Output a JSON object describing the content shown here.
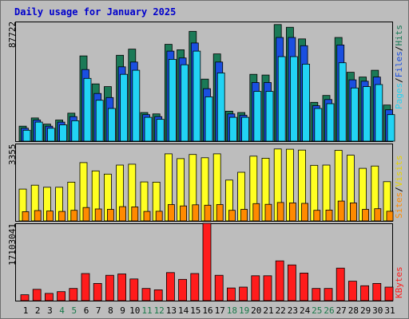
{
  "title": "Daily usage for January 2025",
  "colors": {
    "background": "#bdbdbd",
    "hits": "#1b7a57",
    "files": "#1a4fe0",
    "pages": "#22d3f4",
    "visits": "#ffff22",
    "sites": "#ff8a00",
    "kbytes": "#ff1c1c",
    "weekend_label": "#1a7a4a",
    "weekday_label": "#000000"
  },
  "chart_data": [
    {
      "type": "bar",
      "panel": "hits-files-pages",
      "ymax_label": "87722",
      "ylim": [
        0,
        87722
      ],
      "series_labels": [
        "Pages",
        "/",
        "Files",
        "/",
        "Hits"
      ],
      "categories": [
        "1",
        "2",
        "3",
        "4",
        "5",
        "6",
        "7",
        "8",
        "9",
        "10",
        "11",
        "12",
        "13",
        "14",
        "15",
        "16",
        "17",
        "18",
        "19",
        "20",
        "21",
        "22",
        "23",
        "24",
        "25",
        "26",
        "27",
        "28",
        "29",
        "30",
        "31"
      ],
      "series": [
        {
          "name": "Hits",
          "values": [
            11000,
            17000,
            12500,
            15500,
            20500,
            62500,
            42000,
            40000,
            63000,
            67500,
            21000,
            20000,
            71000,
            67000,
            80500,
            45500,
            64000,
            22000,
            21000,
            49000,
            48500,
            85500,
            83500,
            75000,
            28500,
            33500,
            76000,
            50500,
            47000,
            52000,
            26500
          ]
        },
        {
          "name": "Files",
          "values": [
            9500,
            15500,
            11000,
            14000,
            18000,
            52500,
            35000,
            32000,
            54500,
            58000,
            19500,
            18000,
            66000,
            61000,
            72000,
            38500,
            58000,
            20000,
            19000,
            43000,
            43000,
            76000,
            76000,
            70000,
            26000,
            30500,
            70500,
            45000,
            44000,
            47000,
            23000
          ]
        },
        {
          "name": "Pages",
          "values": [
            8000,
            14000,
            9500,
            12000,
            15000,
            46000,
            30000,
            24000,
            49000,
            52000,
            17500,
            16000,
            60000,
            56000,
            66000,
            32500,
            50000,
            17500,
            17500,
            36500,
            36500,
            62000,
            62000,
            56500,
            24000,
            27500,
            57500,
            39000,
            40000,
            41500,
            19500
          ]
        }
      ]
    },
    {
      "type": "bar",
      "panel": "visits-sites",
      "ymax_label": "3355",
      "ylim": [
        0,
        3355
      ],
      "series_labels": [
        "Sites",
        "/",
        "Visits"
      ],
      "categories": [
        "1",
        "2",
        "3",
        "4",
        "5",
        "6",
        "7",
        "8",
        "9",
        "10",
        "11",
        "12",
        "13",
        "14",
        "15",
        "16",
        "17",
        "18",
        "19",
        "20",
        "21",
        "22",
        "23",
        "24",
        "25",
        "26",
        "27",
        "28",
        "29",
        "30",
        "31"
      ],
      "series": [
        {
          "name": "Visits",
          "values": [
            1380,
            1550,
            1460,
            1460,
            1680,
            2530,
            2170,
            2030,
            2420,
            2460,
            1690,
            1680,
            2910,
            2700,
            2880,
            2740,
            2910,
            1770,
            2110,
            2810,
            2720,
            3120,
            3110,
            3070,
            2410,
            2420,
            3060,
            2850,
            2280,
            2380,
            1700
          ]
        },
        {
          "name": "Sites",
          "values": [
            400,
            450,
            430,
            410,
            460,
            580,
            520,
            500,
            620,
            610,
            410,
            420,
            710,
            650,
            700,
            680,
            710,
            460,
            500,
            750,
            720,
            800,
            780,
            760,
            460,
            470,
            860,
            780,
            500,
            530,
            420
          ]
        }
      ]
    },
    {
      "type": "bar",
      "panel": "kbytes",
      "ymax_label": "17103041",
      "ylim": [
        0,
        17103041
      ],
      "series_labels": [
        "KBytes"
      ],
      "categories": [
        "1",
        "2",
        "3",
        "4",
        "5",
        "6",
        "7",
        "8",
        "9",
        "10",
        "11",
        "12",
        "13",
        "14",
        "15",
        "16",
        "17",
        "18",
        "19",
        "20",
        "21",
        "22",
        "23",
        "24",
        "25",
        "26",
        "27",
        "28",
        "29",
        "30",
        "31"
      ],
      "series": [
        {
          "name": "KBytes",
          "values": [
            1300000,
            2500000,
            1600000,
            2000000,
            2700000,
            6000000,
            3800000,
            5600000,
            5900000,
            4800000,
            2700000,
            2400000,
            6200000,
            4700000,
            6000000,
            17103041,
            5600000,
            2800000,
            3000000,
            5500000,
            5500000,
            8800000,
            7900000,
            6100000,
            2700000,
            2700000,
            7200000,
            4300000,
            3300000,
            3800000,
            3000000
          ]
        }
      ]
    }
  ],
  "x_labels": [
    {
      "text": "1",
      "weekend": false
    },
    {
      "text": "2",
      "weekend": false
    },
    {
      "text": "3",
      "weekend": false
    },
    {
      "text": "4",
      "weekend": true
    },
    {
      "text": "5",
      "weekend": true
    },
    {
      "text": "6",
      "weekend": false
    },
    {
      "text": "7",
      "weekend": false
    },
    {
      "text": "8",
      "weekend": false
    },
    {
      "text": "9",
      "weekend": false
    },
    {
      "text": "10",
      "weekend": false
    },
    {
      "text": "11",
      "weekend": true
    },
    {
      "text": "12",
      "weekend": true
    },
    {
      "text": "13",
      "weekend": false
    },
    {
      "text": "14",
      "weekend": false
    },
    {
      "text": "15",
      "weekend": false
    },
    {
      "text": "16",
      "weekend": false
    },
    {
      "text": "17",
      "weekend": false
    },
    {
      "text": "18",
      "weekend": true
    },
    {
      "text": "19",
      "weekend": true
    },
    {
      "text": "20",
      "weekend": false
    },
    {
      "text": "21",
      "weekend": false
    },
    {
      "text": "22",
      "weekend": false
    },
    {
      "text": "23",
      "weekend": false
    },
    {
      "text": "24",
      "weekend": false
    },
    {
      "text": "25",
      "weekend": true
    },
    {
      "text": "26",
      "weekend": true
    },
    {
      "text": "27",
      "weekend": false
    },
    {
      "text": "28",
      "weekend": false
    },
    {
      "text": "29",
      "weekend": false
    },
    {
      "text": "30",
      "weekend": false
    },
    {
      "text": "31",
      "weekend": false
    }
  ]
}
